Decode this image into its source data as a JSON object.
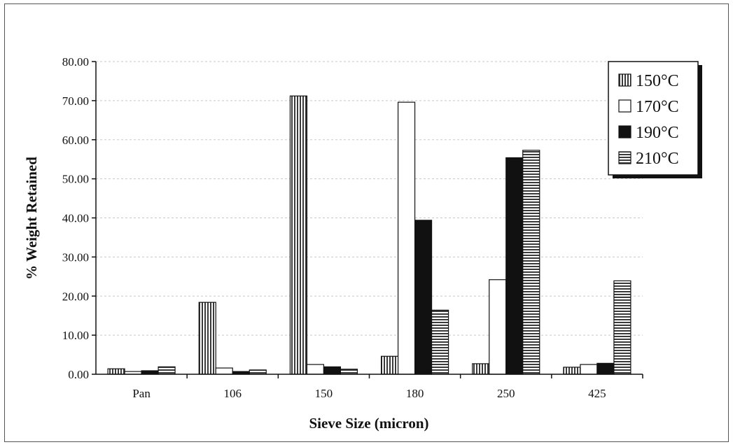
{
  "chart_data": {
    "type": "bar",
    "title": "",
    "xlabel": "Sieve Size (micron)",
    "ylabel": "% Weight Retained",
    "categories": [
      "Pan",
      "106",
      "150",
      "180",
      "250",
      "425"
    ],
    "ylim": [
      0,
      80
    ],
    "yticks": [
      "0.00",
      "10.00",
      "20.00",
      "30.00",
      "40.00",
      "50.00",
      "60.00",
      "70.00",
      "80.00"
    ],
    "grid": true,
    "legend_position": "top-right",
    "series": [
      {
        "name": "150°C",
        "color": "#8a8a8a",
        "pattern": "vertical-stripes",
        "values": [
          1.4,
          18.4,
          71.2,
          4.6,
          2.7,
          1.8
        ]
      },
      {
        "name": "170°C",
        "color": "#ffffff",
        "pattern": "solid-white",
        "values": [
          0.7,
          1.6,
          2.5,
          69.6,
          24.2,
          2.5
        ]
      },
      {
        "name": "190°C",
        "color": "#111111",
        "pattern": "solid-black",
        "values": [
          0.9,
          0.7,
          1.9,
          39.4,
          55.4,
          2.8
        ]
      },
      {
        "name": "210°C",
        "color": "#8a8a8a",
        "pattern": "horizontal-stripes",
        "values": [
          1.9,
          1.1,
          1.3,
          16.4,
          57.3,
          23.9
        ]
      }
    ]
  }
}
